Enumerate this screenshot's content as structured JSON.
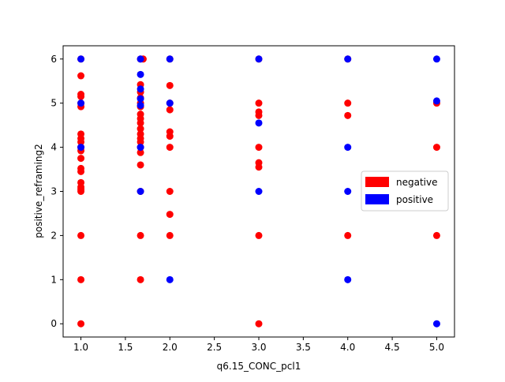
{
  "chart_data": {
    "type": "scatter",
    "title": "",
    "xlabel": "q6.15_CONC_pcl1",
    "ylabel": "positive_reframing2",
    "xlim": [
      0.8,
      5.2
    ],
    "ylim": [
      -0.3,
      6.3
    ],
    "xticks": [
      "1.0",
      "1.5",
      "2.0",
      "2.5",
      "3.0",
      "3.5",
      "4.0",
      "4.5",
      "5.0"
    ],
    "yticks": [
      "0",
      "1",
      "2",
      "3",
      "4",
      "5",
      "6"
    ],
    "grid": false,
    "legend_position": "center-right",
    "series": [
      {
        "name": "negative",
        "color": "#ff0000",
        "points": [
          [
            1.0,
            6.0
          ],
          [
            1.0,
            5.62
          ],
          [
            1.0,
            5.2
          ],
          [
            1.0,
            5.15
          ],
          [
            1.0,
            5.0
          ],
          [
            1.0,
            4.92
          ],
          [
            1.0,
            4.3
          ],
          [
            1.0,
            4.2
          ],
          [
            1.0,
            4.12
          ],
          [
            1.0,
            4.0
          ],
          [
            1.0,
            3.92
          ],
          [
            1.0,
            3.75
          ],
          [
            1.0,
            3.52
          ],
          [
            1.0,
            3.45
          ],
          [
            1.0,
            3.2
          ],
          [
            1.0,
            3.1
          ],
          [
            1.0,
            3.05
          ],
          [
            1.0,
            3.0
          ],
          [
            1.0,
            2.0
          ],
          [
            1.0,
            1.0
          ],
          [
            1.0,
            0.0
          ],
          [
            1.67,
            6.0
          ],
          [
            1.7,
            6.0
          ],
          [
            1.67,
            5.42
          ],
          [
            1.67,
            5.25
          ],
          [
            1.67,
            5.12
          ],
          [
            1.67,
            5.0
          ],
          [
            1.67,
            4.92
          ],
          [
            1.67,
            4.75
          ],
          [
            1.67,
            4.65
          ],
          [
            1.67,
            4.55
          ],
          [
            1.67,
            4.42
          ],
          [
            1.67,
            4.3
          ],
          [
            1.67,
            4.2
          ],
          [
            1.67,
            4.12
          ],
          [
            1.67,
            4.0
          ],
          [
            1.67,
            3.88
          ],
          [
            1.67,
            3.6
          ],
          [
            1.67,
            3.0
          ],
          [
            1.67,
            2.0
          ],
          [
            1.67,
            1.0
          ],
          [
            2.0,
            6.0
          ],
          [
            2.0,
            5.4
          ],
          [
            2.0,
            5.0
          ],
          [
            2.0,
            4.85
          ],
          [
            2.0,
            4.35
          ],
          [
            2.0,
            4.25
          ],
          [
            2.0,
            4.0
          ],
          [
            2.0,
            3.0
          ],
          [
            2.0,
            2.48
          ],
          [
            2.0,
            2.0
          ],
          [
            3.0,
            6.0
          ],
          [
            3.0,
            5.0
          ],
          [
            3.0,
            4.8
          ],
          [
            3.0,
            4.72
          ],
          [
            3.0,
            4.0
          ],
          [
            3.0,
            3.65
          ],
          [
            3.0,
            3.55
          ],
          [
            3.0,
            2.0
          ],
          [
            3.0,
            0.0
          ],
          [
            4.0,
            6.0
          ],
          [
            4.0,
            5.0
          ],
          [
            4.0,
            4.72
          ],
          [
            4.0,
            2.0
          ],
          [
            5.0,
            5.0
          ],
          [
            5.0,
            4.0
          ],
          [
            5.0,
            2.0
          ]
        ]
      },
      {
        "name": "positive",
        "color": "#0000ff",
        "points": [
          [
            1.0,
            6.0
          ],
          [
            1.0,
            5.0
          ],
          [
            1.0,
            4.0
          ],
          [
            1.67,
            6.0
          ],
          [
            1.67,
            5.65
          ],
          [
            1.67,
            5.32
          ],
          [
            1.67,
            5.1
          ],
          [
            1.67,
            4.95
          ],
          [
            1.67,
            4.0
          ],
          [
            1.67,
            3.0
          ],
          [
            2.0,
            6.0
          ],
          [
            2.0,
            5.0
          ],
          [
            2.0,
            1.0
          ],
          [
            3.0,
            6.0
          ],
          [
            3.0,
            4.55
          ],
          [
            3.0,
            3.0
          ],
          [
            4.0,
            6.0
          ],
          [
            4.0,
            4.0
          ],
          [
            4.0,
            3.0
          ],
          [
            4.0,
            1.0
          ],
          [
            5.0,
            6.0
          ],
          [
            5.0,
            5.05
          ],
          [
            5.0,
            0.0
          ]
        ]
      }
    ]
  }
}
